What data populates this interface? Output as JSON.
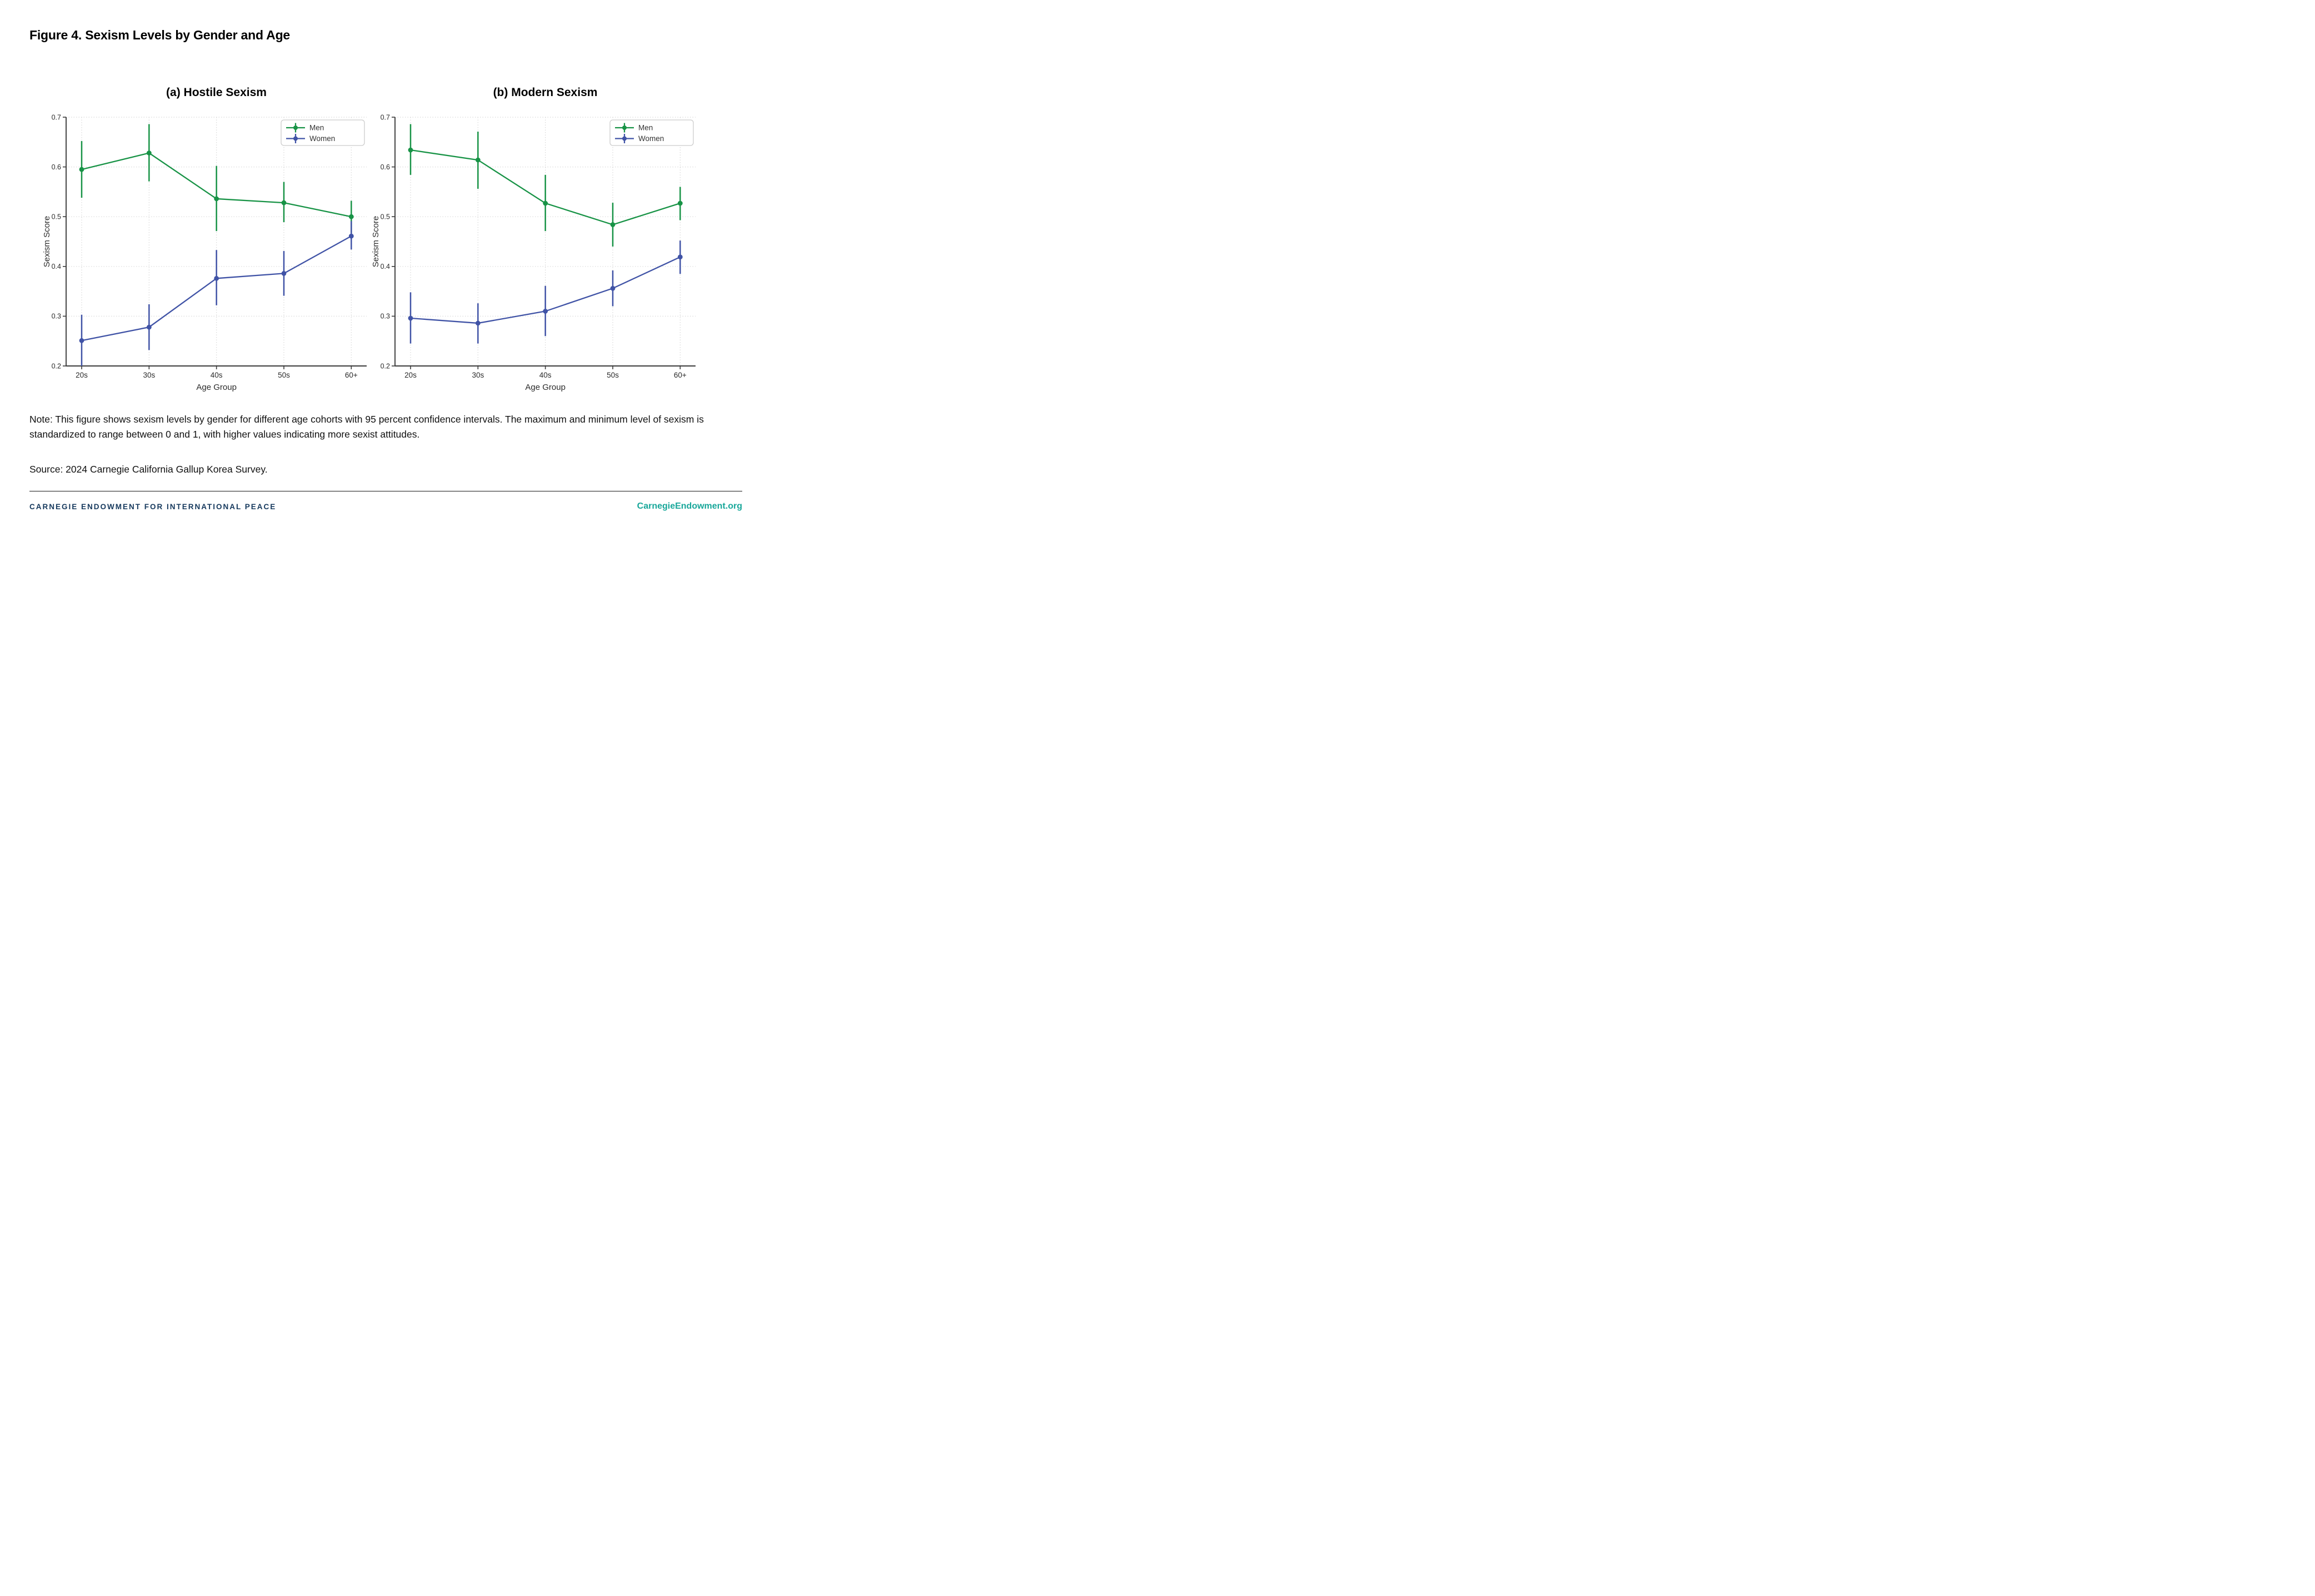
{
  "page": {
    "title": "Figure 4. Sexism Levels by Gender and Age",
    "note": "Note: This figure shows sexism levels by gender for different age cohorts with 95 percent confidence intervals. The maximum and minimum level of sexism is standardized to range between 0 and 1, with higher values indicating more sexist attitudes.",
    "source": "Source: 2024 Carnegie California Gallup Korea Survey.",
    "footer": {
      "left": "CARNEGIE ENDOWMENT FOR INTERNATIONAL PEACE",
      "right": "CarnegieEndowment.org"
    }
  },
  "colors": {
    "men": "#189346",
    "women": "#4053a6",
    "grid": "#d7d7d7",
    "axis": "#3c3c3c",
    "tick_label": "#2b2b2b",
    "legend_border": "#cccccc",
    "footer_navy": "#16395d",
    "footer_teal": "#18a79a"
  },
  "chart_data": [
    {
      "type": "line",
      "title": "(a) Hostile Sexism",
      "xlabel": "Age Group",
      "ylabel": "Sexism Score",
      "categories": [
        "20s",
        "30s",
        "40s",
        "50s",
        "60+"
      ],
      "ylim": [
        0.2,
        0.7
      ],
      "yticks": [
        0.2,
        0.3,
        0.4,
        0.5,
        0.6,
        0.7
      ],
      "grid": true,
      "error_bars": "95% confidence interval",
      "legend_position": "upper right",
      "series": [
        {
          "name": "Men",
          "color_key": "men",
          "values": [
            0.595,
            0.628,
            0.536,
            0.528,
            0.5
          ],
          "ci_low": [
            0.538,
            0.571,
            0.471,
            0.489,
            0.468
          ],
          "ci_high": [
            0.652,
            0.686,
            0.602,
            0.57,
            0.532
          ]
        },
        {
          "name": "Women",
          "color_key": "women",
          "values": [
            0.251,
            0.278,
            0.376,
            0.386,
            0.461
          ],
          "ci_low": [
            0.2,
            0.232,
            0.322,
            0.341,
            0.434
          ],
          "ci_high": [
            0.303,
            0.324,
            0.433,
            0.431,
            0.491
          ]
        }
      ]
    },
    {
      "type": "line",
      "title": "(b) Modern Sexism",
      "xlabel": "Age Group",
      "ylabel": "Sexism Score",
      "categories": [
        "20s",
        "30s",
        "40s",
        "50s",
        "60+"
      ],
      "ylim": [
        0.2,
        0.7
      ],
      "yticks": [
        0.2,
        0.3,
        0.4,
        0.5,
        0.6,
        0.7
      ],
      "grid": true,
      "error_bars": "95% confidence interval",
      "legend_position": "upper right",
      "series": [
        {
          "name": "Men",
          "color_key": "men",
          "values": [
            0.634,
            0.614,
            0.527,
            0.484,
            0.527
          ],
          "ci_low": [
            0.584,
            0.556,
            0.471,
            0.44,
            0.493
          ],
          "ci_high": [
            0.686,
            0.671,
            0.584,
            0.528,
            0.56
          ]
        },
        {
          "name": "Women",
          "color_key": "women",
          "values": [
            0.296,
            0.286,
            0.31,
            0.356,
            0.419
          ],
          "ci_low": [
            0.245,
            0.245,
            0.26,
            0.32,
            0.385
          ],
          "ci_high": [
            0.348,
            0.326,
            0.361,
            0.392,
            0.452
          ]
        }
      ]
    }
  ]
}
